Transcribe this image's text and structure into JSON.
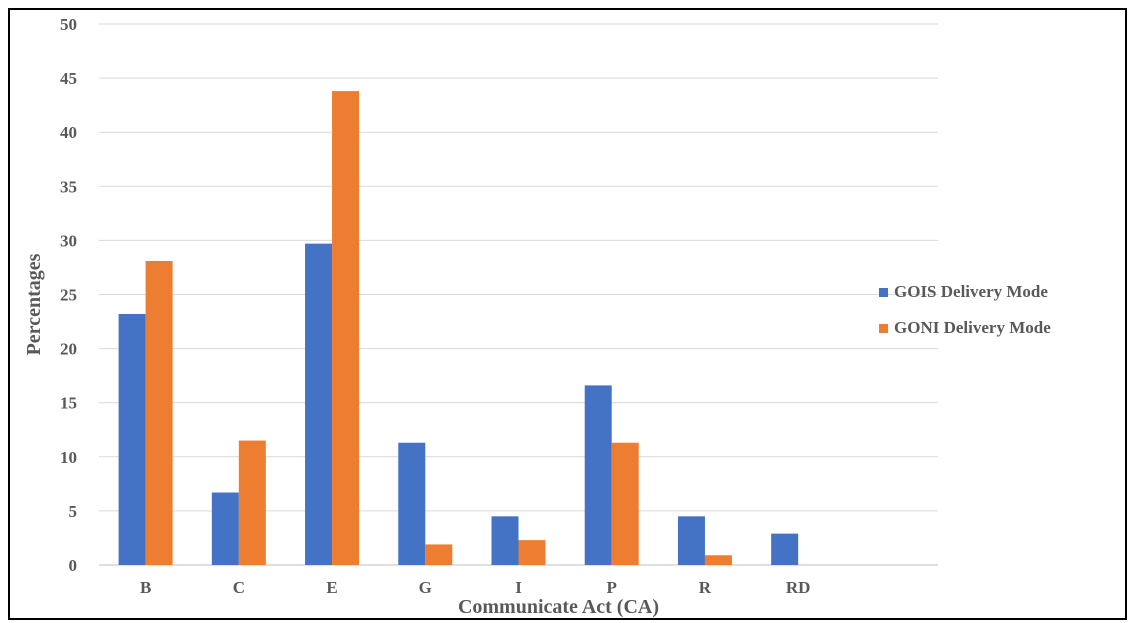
{
  "chart_data": {
    "type": "bar",
    "categories": [
      "B",
      "C",
      "E",
      "G",
      "I",
      "P",
      "R",
      "RD"
    ],
    "series": [
      {
        "name": "GOIS Delivery Mode",
        "color": "#4472C4",
        "values": [
          23.2,
          6.7,
          29.7,
          11.3,
          4.5,
          16.6,
          4.5,
          2.9
        ]
      },
      {
        "name": "GONI Delivery Mode",
        "color": "#ED7D31",
        "values": [
          28.1,
          11.5,
          43.8,
          1.9,
          2.3,
          11.3,
          0.9,
          0
        ]
      }
    ],
    "yticks": [
      "0",
      "5",
      "10",
      "15",
      "20",
      "25",
      "30",
      "35",
      "40",
      "45",
      "50"
    ],
    "ylim": [
      0,
      50
    ],
    "xlabel": "Communicate Act (CA)",
    "ylabel": "Percentages",
    "grid": true,
    "legend_position": "right"
  }
}
